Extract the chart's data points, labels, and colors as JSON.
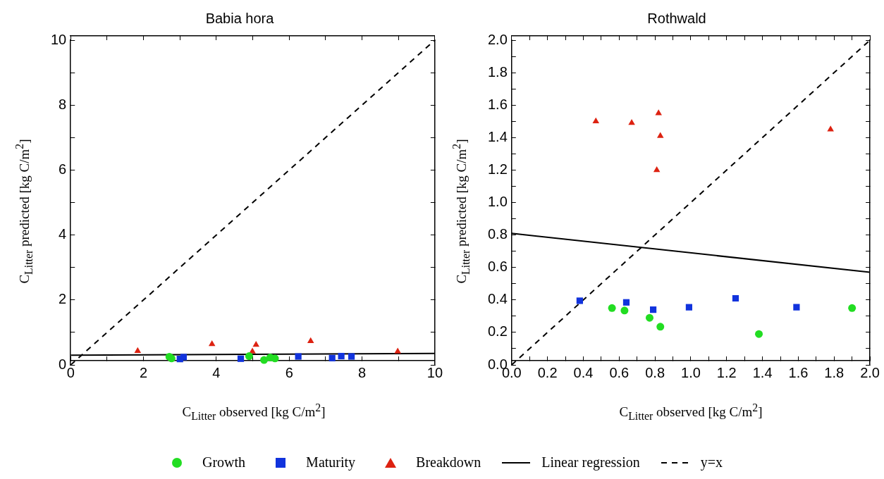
{
  "chart_data": [
    {
      "type": "scatter",
      "title": "Babia hora",
      "xlabel": "C$_{Litter}$ observed [kg C/m$^{2}$]",
      "ylabel": "C$_{Litter}$ predicted [kg C/m$^{2}$]",
      "xlim": [
        0,
        10
      ],
      "ylim": [
        0,
        10
      ],
      "xticks": [
        0,
        {
          "value": 1,
          "label": null
        },
        2,
        {
          "value": 3,
          "label": null
        },
        4,
        {
          "value": 5,
          "label": null
        },
        6,
        {
          "value": 7,
          "label": null
        },
        8,
        {
          "value": 9,
          "label": null
        },
        10
      ],
      "yticks": [
        0,
        {
          "value": 1,
          "label": null
        },
        2,
        {
          "value": 3,
          "label": null
        },
        4,
        {
          "value": 5,
          "label": null
        },
        6,
        {
          "value": 7,
          "label": null
        },
        8,
        {
          "value": 9,
          "label": null
        },
        10
      ],
      "grid": false,
      "legend": "bottom",
      "series": [
        {
          "name": "Growth",
          "color": "#22dd22",
          "marker": "circle",
          "x": [
            2.71,
            2.77,
            4.9,
            5.31,
            5.48,
            5.61
          ],
          "values": [
            0.25,
            0.2,
            0.27,
            0.15,
            0.23,
            0.2
          ]
        },
        {
          "name": "Maturity",
          "color": "#1133dd",
          "marker": "square",
          "x": [
            3.0,
            3.1,
            4.67,
            6.25,
            7.18,
            7.43,
            7.71
          ],
          "values": [
            0.18,
            0.24,
            0.19,
            0.26,
            0.21,
            0.27,
            0.26
          ]
        },
        {
          "name": "Breakdown",
          "color": "#dd2211",
          "marker": "triangle",
          "x": [
            1.84,
            3.88,
            4.99,
            5.09,
            6.59,
            8.98
          ],
          "values": [
            0.43,
            0.64,
            0.41,
            0.62,
            0.73,
            0.41
          ]
        },
        {
          "name": "Linear regression",
          "type": "line",
          "color": "#000000",
          "marker": "none",
          "line_style": "solid",
          "x": [
            0,
            10
          ],
          "values": [
            0.3,
            0.35
          ]
        },
        {
          "name": "y=x",
          "type": "line",
          "color": "#000000",
          "marker": "none",
          "line_style": "dashed",
          "x": [
            0,
            10
          ],
          "values": [
            0,
            10
          ]
        }
      ]
    },
    {
      "type": "scatter",
      "title": "Rothwald",
      "xlabel": "C$_{Litter}$ observed [kg C/m$^{2}$]",
      "ylabel": "C$_{Litter}$ predicted [kg C/m$^{2}$]",
      "xlim": [
        0,
        2
      ],
      "ylim": [
        0,
        2
      ],
      "xticks": [
        {
          "value": 0,
          "label": "0.0"
        },
        {
          "value": 0.1,
          "label": null
        },
        {
          "value": 0.2,
          "label": "0.2"
        },
        {
          "value": 0.3,
          "label": null
        },
        {
          "value": 0.4,
          "label": "0.4"
        },
        {
          "value": 0.5,
          "label": null
        },
        {
          "value": 0.6,
          "label": "0.6"
        },
        {
          "value": 0.7,
          "label": null
        },
        {
          "value": 0.8,
          "label": "0.8"
        },
        {
          "value": 0.9,
          "label": null
        },
        {
          "value": 1,
          "label": "1.0"
        },
        {
          "value": 1.1,
          "label": null
        },
        {
          "value": 1.2,
          "label": "1.2"
        },
        {
          "value": 1.3,
          "label": null
        },
        {
          "value": 1.4,
          "label": "1.4"
        },
        {
          "value": 1.5,
          "label": null
        },
        {
          "value": 1.6,
          "label": "1.6"
        },
        {
          "value": 1.7,
          "label": null
        },
        {
          "value": 1.8,
          "label": "1.8"
        },
        {
          "value": 1.9,
          "label": null
        },
        {
          "value": 2,
          "label": "2.0"
        }
      ],
      "yticks": [
        {
          "value": 0,
          "label": "0.0"
        },
        {
          "value": 0.1,
          "label": null
        },
        {
          "value": 0.2,
          "label": "0.2"
        },
        {
          "value": 0.3,
          "label": null
        },
        {
          "value": 0.4,
          "label": "0.4"
        },
        {
          "value": 0.5,
          "label": null
        },
        {
          "value": 0.6,
          "label": "0.6"
        },
        {
          "value": 0.7,
          "label": null
        },
        {
          "value": 0.8,
          "label": "0.8"
        },
        {
          "value": 0.9,
          "label": null
        },
        {
          "value": 1,
          "label": "1.0"
        },
        {
          "value": 1.1,
          "label": null
        },
        {
          "value": 1.2,
          "label": "1.2"
        },
        {
          "value": 1.3,
          "label": null
        },
        {
          "value": 1.4,
          "label": "1.4"
        },
        {
          "value": 1.5,
          "label": null
        },
        {
          "value": 1.6,
          "label": "1.6"
        },
        {
          "value": 1.7,
          "label": null
        },
        {
          "value": 1.8,
          "label": "1.8"
        },
        {
          "value": 1.9,
          "label": null
        },
        {
          "value": 2,
          "label": "2.0"
        }
      ],
      "grid": false,
      "series": [
        {
          "color": "#22dd22",
          "marker": "circle",
          "x": [
            0.56,
            0.63,
            0.77,
            0.83,
            1.38,
            1.9
          ],
          "values": [
            0.35,
            0.335,
            0.29,
            0.235,
            0.19,
            0.35
          ]
        },
        {
          "color": "#1133dd",
          "marker": "square",
          "x": [
            0.38,
            0.64,
            0.79,
            0.99,
            1.25,
            1.59
          ],
          "values": [
            0.395,
            0.385,
            0.34,
            0.355,
            0.41,
            0.355
          ]
        },
        {
          "color": "#dd2211",
          "marker": "triangle",
          "x": [
            0.47,
            0.67,
            0.81,
            0.82,
            0.83,
            1.78
          ],
          "values": [
            1.5,
            1.49,
            1.2,
            1.55,
            1.41,
            1.45
          ]
        },
        {
          "type": "line",
          "color": "#000000",
          "marker": "none",
          "line_style": "solid",
          "x": [
            0,
            2
          ],
          "values": [
            0.81,
            0.57
          ]
        },
        {
          "type": "line",
          "color": "#000000",
          "marker": "none",
          "line_style": "dashed",
          "x": [
            0,
            2
          ],
          "values": [
            0,
            2
          ]
        }
      ]
    }
  ]
}
